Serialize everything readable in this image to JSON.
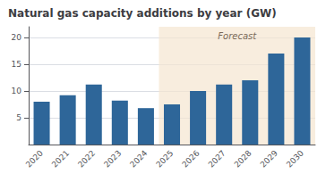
{
  "chart_data": {
    "type": "bar",
    "title": "Natural gas capacity additions by year (GW)",
    "categories": [
      "2020",
      "2021",
      "2022",
      "2023",
      "2024",
      "2025",
      "2026",
      "2027",
      "2028",
      "2029",
      "2030"
    ],
    "values": [
      8.0,
      9.2,
      11.2,
      8.2,
      6.8,
      7.5,
      10.0,
      11.2,
      12.0,
      17.0,
      20.0
    ],
    "color": "#2E6699",
    "ylim": [
      0,
      22
    ],
    "yticks": [
      5,
      10,
      15,
      20
    ],
    "grid": true,
    "annotations": [
      {
        "text": "Forecast",
        "from": "2025",
        "to": "2030"
      }
    ]
  }
}
